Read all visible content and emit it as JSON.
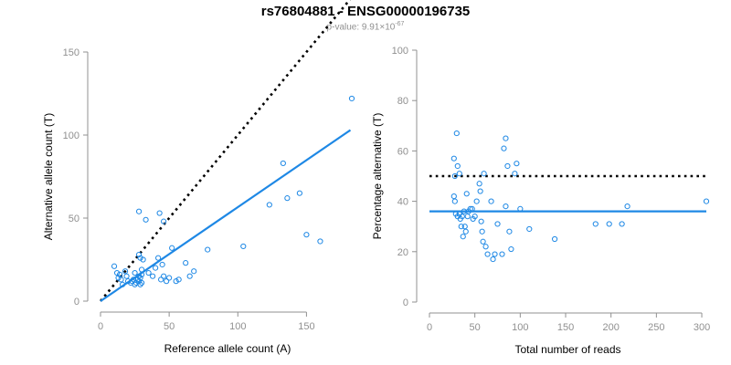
{
  "title": "rs76804881 - ENSG00000196735",
  "subtitle": {
    "prefix": "p-value: 9.91×10",
    "exponent": "-67"
  },
  "colors": {
    "points": "#1e88e5",
    "fit_line": "#1e88e5",
    "reference_line": "#000000",
    "axis": "#909090"
  },
  "chart_data": [
    {
      "type": "scatter",
      "xlabel": "Reference allele count (A)",
      "ylabel": "Alternative allele count (T)",
      "xlim": [
        0,
        185
      ],
      "ylim": [
        0,
        150
      ],
      "xticks": [
        0,
        50,
        100,
        150
      ],
      "yticks": [
        0,
        50,
        100,
        150
      ],
      "grid": false,
      "reference_line": {
        "style": "dotted",
        "points": [
          [
            0,
            0
          ],
          [
            182,
            182
          ]
        ]
      },
      "fit_line": {
        "style": "solid",
        "points": [
          [
            0,
            0
          ],
          [
            182,
            103
          ]
        ]
      },
      "points": [
        [
          10,
          21
        ],
        [
          12,
          17
        ],
        [
          13,
          14
        ],
        [
          14,
          16
        ],
        [
          15,
          13
        ],
        [
          16,
          10
        ],
        [
          18,
          18
        ],
        [
          19,
          15
        ],
        [
          20,
          12
        ],
        [
          22,
          11
        ],
        [
          23,
          12
        ],
        [
          24,
          13
        ],
        [
          25,
          10
        ],
        [
          25,
          17
        ],
        [
          26,
          11
        ],
        [
          27,
          13
        ],
        [
          28,
          12
        ],
        [
          28,
          15
        ],
        [
          29,
          10
        ],
        [
          29,
          14
        ],
        [
          30,
          11
        ],
        [
          30,
          16
        ],
        [
          30,
          19
        ],
        [
          28,
          28
        ],
        [
          29,
          26
        ],
        [
          31,
          25
        ],
        [
          28,
          54
        ],
        [
          33,
          49
        ],
        [
          43,
          53
        ],
        [
          38,
          15
        ],
        [
          35,
          17
        ],
        [
          40,
          20
        ],
        [
          42,
          26
        ],
        [
          44,
          13
        ],
        [
          45,
          22
        ],
        [
          46,
          15
        ],
        [
          46,
          48
        ],
        [
          48,
          12
        ],
        [
          50,
          14
        ],
        [
          52,
          32
        ],
        [
          55,
          12
        ],
        [
          57,
          13
        ],
        [
          62,
          23
        ],
        [
          65,
          15
        ],
        [
          68,
          18
        ],
        [
          78,
          31
        ],
        [
          104,
          33
        ],
        [
          123,
          58
        ],
        [
          133,
          83
        ],
        [
          136,
          62
        ],
        [
          145,
          65
        ],
        [
          183,
          122
        ],
        [
          160,
          36
        ],
        [
          150,
          40
        ]
      ]
    },
    {
      "type": "scatter",
      "xlabel": "Total number of reads",
      "ylabel": "Percentage alternative (T)",
      "xlim": [
        0,
        305
      ],
      "ylim": [
        0,
        100
      ],
      "xticks": [
        0,
        50,
        100,
        150,
        200,
        250,
        300
      ],
      "yticks": [
        0,
        20,
        40,
        60,
        80,
        100
      ],
      "grid": false,
      "reference_line": {
        "style": "dotted",
        "points": [
          [
            0,
            50
          ],
          [
            305,
            50
          ]
        ]
      },
      "fit_line": {
        "style": "solid",
        "points": [
          [
            0,
            36
          ],
          [
            305,
            36
          ]
        ]
      },
      "points": [
        [
          27,
          57
        ],
        [
          28,
          50
        ],
        [
          30,
          67
        ],
        [
          31,
          54
        ],
        [
          33,
          51
        ],
        [
          27,
          42
        ],
        [
          28,
          40
        ],
        [
          29,
          35
        ],
        [
          31,
          34
        ],
        [
          33,
          35
        ],
        [
          34,
          33
        ],
        [
          35,
          30
        ],
        [
          36,
          34
        ],
        [
          37,
          26
        ],
        [
          38,
          36
        ],
        [
          39,
          30
        ],
        [
          40,
          28
        ],
        [
          41,
          43
        ],
        [
          42,
          34
        ],
        [
          43,
          36
        ],
        [
          45,
          37
        ],
        [
          47,
          37
        ],
        [
          48,
          33
        ],
        [
          50,
          34
        ],
        [
          52,
          40
        ],
        [
          55,
          47
        ],
        [
          56,
          44
        ],
        [
          57,
          32
        ],
        [
          58,
          28
        ],
        [
          59,
          24
        ],
        [
          60,
          51
        ],
        [
          62,
          22
        ],
        [
          64,
          19
        ],
        [
          68,
          40
        ],
        [
          70,
          17
        ],
        [
          72,
          19
        ],
        [
          75,
          31
        ],
        [
          80,
          19
        ],
        [
          82,
          61
        ],
        [
          84,
          38
        ],
        [
          84,
          65
        ],
        [
          86,
          54
        ],
        [
          88,
          28
        ],
        [
          90,
          21
        ],
        [
          94,
          51
        ],
        [
          96,
          55
        ],
        [
          100,
          37
        ],
        [
          110,
          29
        ],
        [
          138,
          25
        ],
        [
          183,
          31
        ],
        [
          198,
          31
        ],
        [
          212,
          31
        ],
        [
          218,
          38
        ],
        [
          305,
          40
        ]
      ]
    }
  ]
}
